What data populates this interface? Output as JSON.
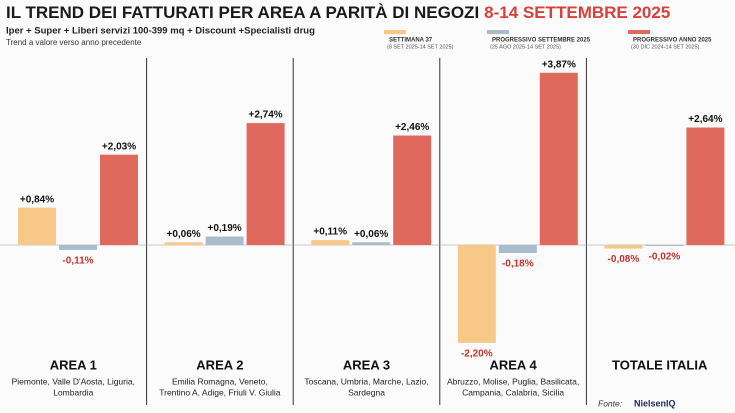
{
  "chart_data": {
    "type": "bar",
    "title": "IL TREND DEI FATTURATI PER AREA A PARITÀ DI NEGOZI",
    "title_highlight": "8-14 SETTEMBRE 2025",
    "subtitle": "Iper + Super + Liberi servizi 100-399 mq + Discount +Specialisti drug",
    "note": "Trend a valore verso anno precedente",
    "categories": [
      "AREA 1",
      "AREA 2",
      "AREA 3",
      "AREA 4",
      "TOTALE ITALIA"
    ],
    "category_descriptions": [
      [
        "Piemonte, Valle D'Aosta, Liguria,",
        "Lombardia"
      ],
      [
        "Emilia Romagna, Veneto,",
        "Trentino A. Adige, Friuli V. Giulia"
      ],
      [
        "Toscana, Umbria, Marche, Lazio,",
        "Sardegna"
      ],
      [
        "Abruzzo, Molise, Puglia, Basilicata,",
        "Campania, Calabria, Sicilia"
      ],
      []
    ],
    "series": [
      {
        "name": "SETTIMANA 37",
        "period": "(8 SET 2025-14 SET 2025)",
        "color": "#f7c888",
        "values": [
          0.84,
          0.06,
          0.11,
          -2.2,
          -0.08
        ],
        "value_labels": [
          "+0,84%",
          "+0,06%",
          "+0,11%",
          "-2,20%",
          "-0,08%"
        ]
      },
      {
        "name": "PROGRESSIVO SETTEMBRE 2025",
        "period": "(25 AGO 2025-14 SET 2025)",
        "color": "#a8bccb",
        "values": [
          -0.11,
          0.19,
          0.06,
          -0.18,
          -0.02
        ],
        "value_labels": [
          "-0,11%",
          "+0,19%",
          "+0,06%",
          "-0,18%",
          "-0,02%"
        ]
      },
      {
        "name": "PROGRESSIVO ANNO 2025",
        "period": "(30 DIC 2024-14 SET 2025)",
        "color": "#e0695d",
        "values": [
          2.03,
          2.74,
          2.46,
          3.87,
          2.64
        ],
        "value_labels": [
          "+2,03%",
          "+2,74%",
          "+2,46%",
          "+3,87%",
          "+2,64%"
        ]
      }
    ],
    "source_label": "Fonte:",
    "source": "NielsenIQ"
  }
}
